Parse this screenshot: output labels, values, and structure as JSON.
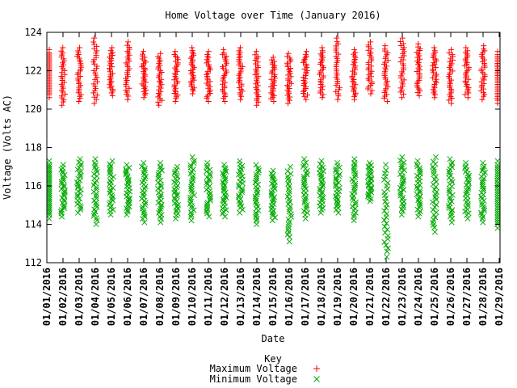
{
  "chart_data": {
    "type": "scatter",
    "title": "Home Voltage over Time (January 2016)",
    "xlabel": "Date",
    "ylabel": "Voltage (Volts AC)",
    "ylim": [
      112,
      124
    ],
    "y_ticks": [
      112,
      114,
      116,
      118,
      120,
      122,
      124
    ],
    "grid": false,
    "legend_position": "bottom-center",
    "legend_title": "Key",
    "categories": [
      "01/01/2016",
      "01/02/2016",
      "01/03/2016",
      "01/04/2016",
      "01/05/2016",
      "01/06/2016",
      "01/07/2016",
      "01/08/2016",
      "01/09/2016",
      "01/10/2016",
      "01/11/2016",
      "01/12/2016",
      "01/13/2016",
      "01/14/2016",
      "01/15/2016",
      "01/16/2016",
      "01/17/2016",
      "01/18/2016",
      "01/19/2016",
      "01/20/2016",
      "01/21/2016",
      "01/22/2016",
      "01/23/2016",
      "01/24/2016",
      "01/25/2016",
      "01/26/2016",
      "01/27/2016",
      "01/28/2016",
      "01/29/2016"
    ],
    "series": [
      {
        "name": "Maximum Voltage",
        "marker": "plus",
        "color": "#ff0000",
        "ranges": [
          [
            120.6,
            123.1
          ],
          [
            120.2,
            123.2
          ],
          [
            120.4,
            123.2
          ],
          [
            120.3,
            123.7
          ],
          [
            120.7,
            123.2
          ],
          [
            120.5,
            123.5
          ],
          [
            120.6,
            123.0
          ],
          [
            120.2,
            122.9
          ],
          [
            120.4,
            123.0
          ],
          [
            120.8,
            123.2
          ],
          [
            120.4,
            123.0
          ],
          [
            120.4,
            123.1
          ],
          [
            120.5,
            123.2
          ],
          [
            120.2,
            123.0
          ],
          [
            120.4,
            122.7
          ],
          [
            120.3,
            122.9
          ],
          [
            120.5,
            123.0
          ],
          [
            120.6,
            123.2
          ],
          [
            120.5,
            123.7
          ],
          [
            120.5,
            123.1
          ],
          [
            120.8,
            123.5
          ],
          [
            120.4,
            123.3
          ],
          [
            120.6,
            123.7
          ],
          [
            120.7,
            123.4
          ],
          [
            120.6,
            123.2
          ],
          [
            120.3,
            123.1
          ],
          [
            120.6,
            123.2
          ],
          [
            120.5,
            123.3
          ],
          [
            120.3,
            123.0
          ]
        ]
      },
      {
        "name": "Minimum Voltage",
        "marker": "cross",
        "color": "#00aa00",
        "ranges": [
          [
            114.3,
            117.3
          ],
          [
            114.4,
            117.1
          ],
          [
            114.6,
            117.4
          ],
          [
            114.0,
            117.4
          ],
          [
            114.5,
            117.3
          ],
          [
            114.5,
            117.1
          ],
          [
            114.1,
            117.2
          ],
          [
            114.1,
            117.2
          ],
          [
            114.3,
            117.0
          ],
          [
            114.2,
            117.5
          ],
          [
            114.4,
            117.2
          ],
          [
            114.4,
            117.1
          ],
          [
            114.6,
            117.3
          ],
          [
            114.0,
            117.1
          ],
          [
            114.2,
            116.8
          ],
          [
            113.1,
            117.0
          ],
          [
            114.3,
            117.4
          ],
          [
            114.6,
            117.3
          ],
          [
            114.6,
            117.2
          ],
          [
            114.2,
            117.4
          ],
          [
            115.2,
            117.2
          ],
          [
            112.3,
            117.1
          ],
          [
            114.5,
            117.5
          ],
          [
            114.4,
            117.3
          ],
          [
            113.6,
            117.5
          ],
          [
            114.1,
            117.4
          ],
          [
            114.3,
            117.2
          ],
          [
            114.1,
            117.2
          ],
          [
            113.8,
            117.3
          ]
        ]
      }
    ]
  }
}
